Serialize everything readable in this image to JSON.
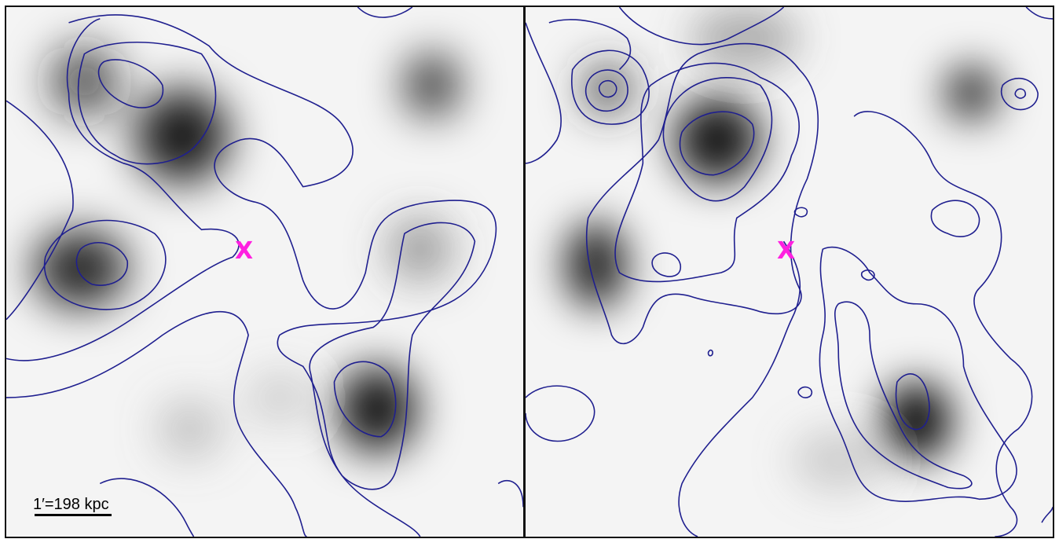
{
  "figure": {
    "left_panel": {
      "marker_symbol": "X"
    },
    "right_panel": {
      "marker_symbol": "X"
    },
    "scale_bar": {
      "label": "1′=198 kpc"
    },
    "colors": {
      "contour": "#1f1f8f",
      "marker": "#ff20e0",
      "background": "#f4f4f4",
      "frame": "#111111"
    }
  }
}
